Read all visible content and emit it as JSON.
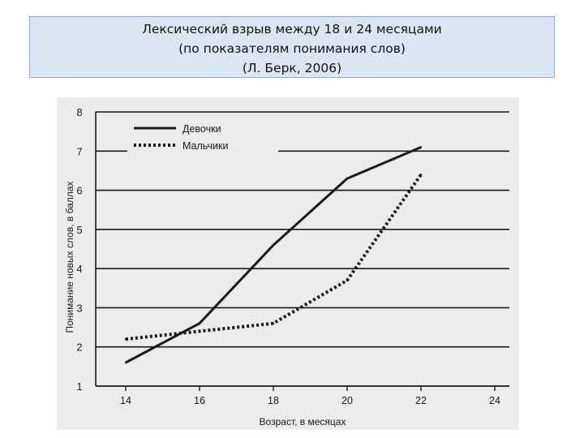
{
  "slide": {
    "title_lines": [
      "Лексический взрыв между 18 и 24 месяцами",
      "(по показателям понимания слов)",
      "(Л. Берк, 2006)"
    ]
  },
  "chart_data": {
    "type": "line",
    "xlabel": "Возраст, в месяцах",
    "ylabel": "Понимание новых слов, в баллах",
    "xlim": [
      14,
      24
    ],
    "ylim": [
      1,
      8
    ],
    "x_ticks": [
      14,
      16,
      18,
      20,
      22,
      24
    ],
    "y_ticks": [
      1,
      2,
      3,
      4,
      5,
      6,
      7,
      8
    ],
    "grid": "horizontal",
    "legend_position": "top-left",
    "series": [
      {
        "name": "Девочки",
        "style": "solid",
        "x": [
          14,
          16,
          18,
          20,
          22
        ],
        "y": [
          1.6,
          2.6,
          4.6,
          6.3,
          7.1
        ]
      },
      {
        "name": "Мальчики",
        "style": "dotted",
        "x": [
          14,
          16,
          18,
          20,
          22
        ],
        "y": [
          2.2,
          2.4,
          2.6,
          3.7,
          6.4
        ]
      }
    ],
    "colors": {
      "line": "#1a1a1a",
      "grid": "#1a1a1a",
      "scan_bg": "#ececec",
      "title_bg": "#dce6f2"
    }
  }
}
